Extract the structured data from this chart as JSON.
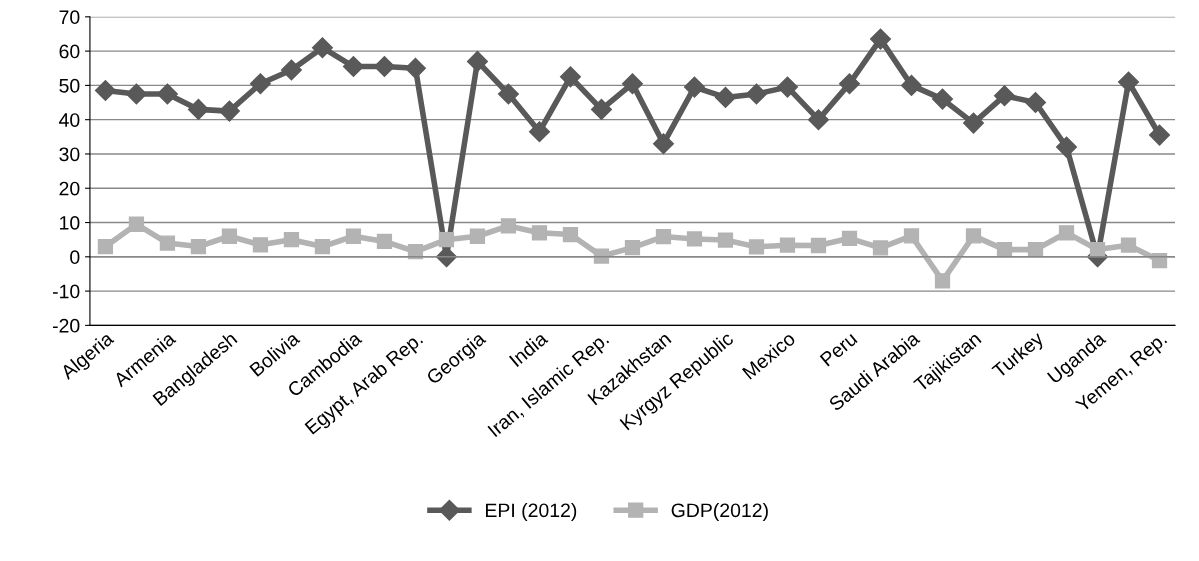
{
  "chart_data": {
    "type": "line",
    "categories": [
      "Algeria",
      null,
      "Armenia",
      null,
      "Bangladesh",
      null,
      "Bolivia",
      null,
      "Cambodia",
      null,
      "Egypt, Arab Rep.",
      null,
      "Georgia",
      null,
      "India",
      null,
      "Iran, Islamic Rep.",
      null,
      "Kazakhstan",
      null,
      "Kyrgyz Republic",
      null,
      "Mexico",
      null,
      "Peru",
      null,
      "Saudi Arabia",
      null,
      "Tajikistan",
      null,
      "Turkey",
      null,
      "Uganda",
      null,
      "Yemen, Rep."
    ],
    "series": [
      {
        "name": "EPI (2012)",
        "color": "#595959",
        "marker": "diamond",
        "values": [
          48.5,
          47.5,
          47.5,
          43,
          42.5,
          50.5,
          54.5,
          61,
          55.5,
          55.5,
          55,
          0,
          57,
          47.5,
          36.5,
          52.5,
          43,
          50.5,
          33,
          49.5,
          46.5,
          47.5,
          49.5,
          40,
          50.5,
          63.5,
          50,
          46,
          39,
          47,
          45,
          32,
          0,
          51,
          35.5
        ]
      },
      {
        "name": "GDP(2012)",
        "color": "#b3b3b3",
        "marker": "square",
        "values": [
          3,
          9.5,
          4,
          3,
          6,
          3.5,
          5,
          3,
          6,
          4.5,
          1.5,
          5,
          6,
          9,
          7,
          6.5,
          0.2,
          2.7,
          5.9,
          5.2,
          4.9,
          2.9,
          3.4,
          3.3,
          5.4,
          2.6,
          6.1,
          -7,
          6.1,
          2.1,
          2.1,
          7,
          2.1,
          3.4,
          -1.1
        ]
      }
    ],
    "ylim": [
      -20,
      70
    ],
    "yticks": [
      -20,
      -10,
      0,
      10,
      20,
      30,
      40,
      50,
      60,
      70
    ],
    "grid": "y",
    "legend": "bottom",
    "line_style": "solid"
  }
}
